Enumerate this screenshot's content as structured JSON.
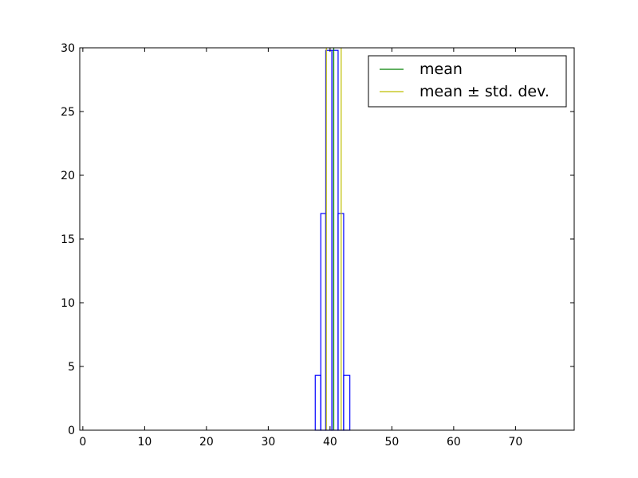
{
  "chart_data": {
    "type": "histogram",
    "xlim": [
      -0.5,
      79.5
    ],
    "ylim": [
      0,
      30
    ],
    "xticks": [
      0,
      10,
      20,
      30,
      40,
      50,
      60,
      70
    ],
    "yticks": [
      0,
      5,
      10,
      15,
      20,
      25,
      30
    ],
    "xtick_labels": [
      "0",
      "10",
      "20",
      "30",
      "40",
      "50",
      "60",
      "70"
    ],
    "ytick_labels": [
      "0",
      "5",
      "10",
      "15",
      "20",
      "25",
      "30"
    ],
    "grid": false,
    "legend_position": "upper-right",
    "histogram": {
      "bin_edges": [
        37.6,
        38.5,
        39.3,
        40.3,
        41.3,
        42.2,
        43.2
      ],
      "counts": [
        4.3,
        17,
        29.8,
        29.8,
        17,
        4.3
      ],
      "color": "#0000ff"
    },
    "lines": [
      {
        "name": "mean",
        "x": 40.6,
        "color": "#008000"
      },
      {
        "name": "mean ± std. dev.",
        "x": [
          39.4,
          41.8
        ],
        "color": "#bfbf00"
      }
    ],
    "legend": [
      {
        "label": "mean",
        "color": "#008000"
      },
      {
        "label": "mean ± std. dev.",
        "color": "#bfbf00"
      }
    ]
  }
}
